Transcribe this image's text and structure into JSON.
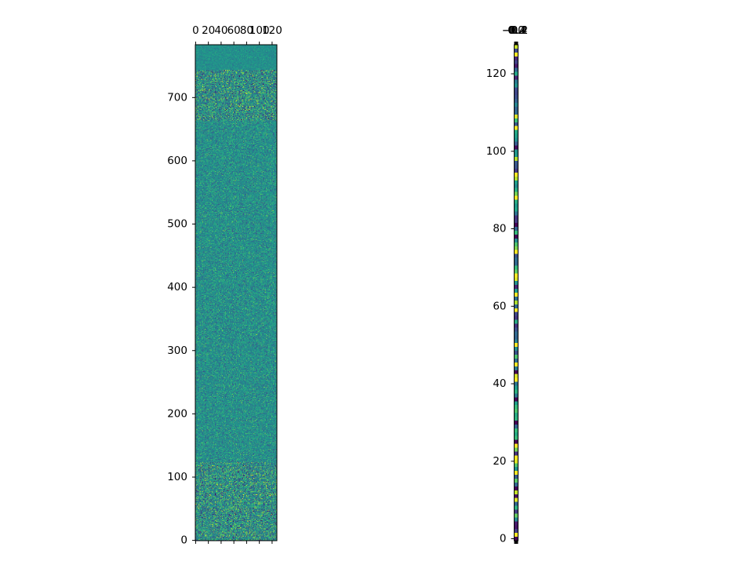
{
  "chart_data": [
    {
      "type": "heatmap",
      "title": "",
      "xlabel": "",
      "ylabel": "",
      "rows": 784,
      "cols": 128,
      "colormap": "viridis",
      "value_range": [
        -0.4,
        0.4
      ],
      "x_axis_position": "top",
      "xlim": [
        -0.5,
        127.5
      ],
      "ylim": [
        783.5,
        -0.5
      ],
      "x_ticks": [
        0,
        20,
        40,
        60,
        80,
        100,
        120
      ],
      "x_tick_labels": [
        "0",
        "20",
        "40",
        "60",
        "80",
        "100",
        "120"
      ],
      "y_ticks": [
        0,
        100,
        200,
        300,
        400,
        500,
        600,
        700
      ],
      "y_tick_labels": [
        "0",
        "100",
        "200",
        "300",
        "400",
        "500",
        "600",
        "700"
      ],
      "dense_band_rows": [
        [
          40,
          120
        ],
        [
          660,
          784
        ]
      ]
    },
    {
      "type": "heatmap",
      "title": "",
      "xlabel": "",
      "ylabel": "",
      "rows": 128,
      "cols": 1,
      "colormap": "viridis",
      "value_range": [
        -0.4,
        0.4
      ],
      "x_axis_position": "top",
      "xlim": [
        -0.5,
        0.5
      ],
      "ylim": [
        127.5,
        -0.5
      ],
      "x_ticks": [
        -0.4,
        -0.2,
        0.0,
        0.2,
        0.4
      ],
      "x_tick_labels": [
        "−0.4",
        "−0.2",
        "0.0",
        "0.2",
        "0.4"
      ],
      "y_ticks": [
        0,
        20,
        40,
        60,
        80,
        100,
        120
      ],
      "y_tick_labels": [
        "0",
        "20",
        "40",
        "60",
        "80",
        "100",
        "120"
      ],
      "bright_rows": [
        18,
        60,
        107,
        117
      ]
    }
  ]
}
